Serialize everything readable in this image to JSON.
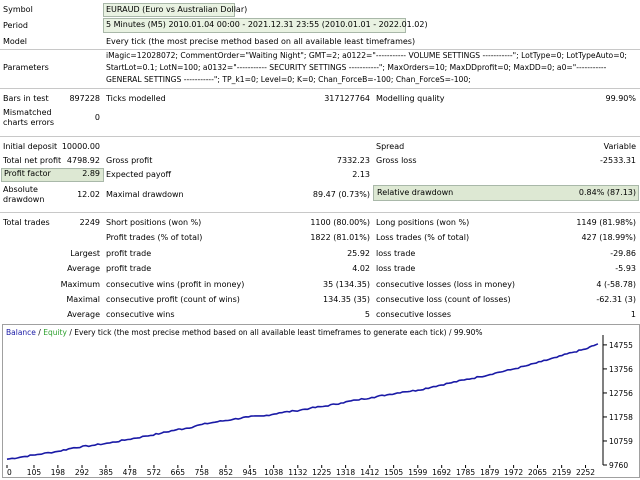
{
  "header": {
    "symbol_label": "Symbol",
    "symbol_value": "EURAUD (Euro vs Australian Dollar)",
    "period_label": "Period",
    "period_value": "5 Minutes (M5) 2010.01.04 00:00 - 2021.12.31 23:55 (2010.01.01 - 2022.01.02)",
    "model_label": "Model",
    "model_value": "Every tick (the most precise method based on all available least timeframes)",
    "params_label": "Parameters",
    "params_line1": "iMagic=12028072; CommentOrder=\"Waiting Night\"; GMT=2; a0122=\"----------- VOLUME SETTINGS -----------\"; LotType=0; LotTypeAuto=0;",
    "params_line2": "StartLot=0.1; LotN=100; a0132=\"----------- SECURITY SETTINGS -----------\"; MaxOrders=10; MaxDDprofit=0; MaxDD=0; a0=\"-----------",
    "params_line3": "GENERAL SETTINGS -----------\"; TP_k1=0; Level=0; K=0; Chan_ForceB=-100; Chan_ForceS=-100;"
  },
  "stats": {
    "bars_label": "Bars in test",
    "bars_value": "897228",
    "ticks_label": "Ticks modelled",
    "ticks_value": "317127764",
    "quality_label": "Modelling quality",
    "quality_value": "99.90%",
    "mismatch_label1": "Mismatched",
    "mismatch_label2": "charts errors",
    "mismatch_value": "0",
    "deposit_label": "Initial deposit",
    "deposit_value": "10000.00",
    "spread_label": "Spread",
    "spread_value": "Variable",
    "netprofit_label": "Total net profit",
    "netprofit_value": "4798.92",
    "grossprofit_label": "Gross profit",
    "grossprofit_value": "7332.23",
    "grossloss_label": "Gross loss",
    "grossloss_value": "-2533.31",
    "pf_label": "Profit factor",
    "pf_value": "2.89",
    "payoff_label": "Expected payoff",
    "payoff_value": "2.13",
    "absdd_label1": "Absolute",
    "absdd_label2": "drawdown",
    "absdd_value": "12.02",
    "maxdd_label": "Maximal drawdown",
    "maxdd_value": "89.47 (0.73%)",
    "reldd_label": "Relative drawdown",
    "reldd_value": "0.84% (87.13)",
    "trades_label": "Total trades",
    "trades_value": "2249",
    "short_label": "Short positions (won %)",
    "short_value": "1100 (80.00%)",
    "long_label": "Long positions (won %)",
    "long_value": "1149 (81.98%)",
    "pt_label": "Profit trades (% of total)",
    "pt_value": "1822 (81.01%)",
    "lt_label": "Loss trades (% of total)",
    "lt_value": "427 (18.99%)",
    "largest_label": "Largest",
    "largest_pt_label": "profit trade",
    "largest_pt_value": "25.92",
    "largest_lt_label": "loss trade",
    "largest_lt_value": "-29.86",
    "average_label": "Average",
    "average_pt_label": "profit trade",
    "average_pt_value": "4.02",
    "average_lt_label": "loss trade",
    "average_lt_value": "-5.93",
    "maximum_label": "Maximum",
    "max_cw_label": "consecutive wins (profit in money)",
    "max_cw_value": "35 (134.35)",
    "max_cl_label": "consecutive losses (loss in money)",
    "max_cl_value": "4 (-58.78)",
    "maximal_label": "Maximal",
    "mxl_cp_label": "consecutive profit (count of wins)",
    "mxl_cp_value": "134.35 (35)",
    "mxl_cl_label": "consecutive loss (count of losses)",
    "mxl_cl_value": "-62.31 (3)",
    "avg2_label": "Average",
    "avg_cw_label": "consecutive wins",
    "avg_cw_value": "5",
    "avg_cl_label": "consecutive losses",
    "avg_cl_value": "1"
  },
  "chart_header": {
    "balance": "Balance",
    "sep1": " / ",
    "equity": "Equity",
    "rest": " / Every tick (the most precise method based on all available least timeframes to generate each tick) / 99.90%"
  },
  "colors": {
    "balance": "#1a1aa6",
    "equity": "#2ea02e",
    "row_box": "#e9f2e2"
  },
  "chart_data": {
    "type": "line",
    "x_ticks": [
      "0",
      "105",
      "198",
      "292",
      "385",
      "478",
      "572",
      "665",
      "758",
      "852",
      "945",
      "1038",
      "1132",
      "1225",
      "1318",
      "1412",
      "1505",
      "1599",
      "1692",
      "1785",
      "1879",
      "1972",
      "2065",
      "2159",
      "2252"
    ],
    "y_ticks": [
      9760,
      10759,
      11758,
      12756,
      13756,
      14755
    ],
    "xlim": [
      0,
      2320
    ],
    "ylim": [
      9760,
      15000
    ],
    "series": [
      {
        "name": "Balance",
        "x": [
          0,
          60,
          120,
          200,
          260,
          330,
          400,
          470,
          540,
          600,
          660,
          700,
          760,
          820,
          880,
          940,
          1000,
          1060,
          1120,
          1180,
          1240,
          1300,
          1360,
          1420,
          1480,
          1540,
          1600,
          1660,
          1720,
          1780,
          1840,
          1900,
          1960,
          2020,
          2080,
          2140,
          2200,
          2252,
          2300
        ],
        "y": [
          10000,
          10100,
          10200,
          10330,
          10480,
          10570,
          10680,
          10820,
          10960,
          11080,
          11230,
          11290,
          11450,
          11560,
          11660,
          11760,
          11800,
          11930,
          12010,
          12120,
          12210,
          12340,
          12460,
          12570,
          12680,
          12800,
          12870,
          13020,
          13160,
          13300,
          13430,
          13580,
          13720,
          13880,
          14060,
          14240,
          14440,
          14580,
          14800
        ]
      }
    ]
  }
}
